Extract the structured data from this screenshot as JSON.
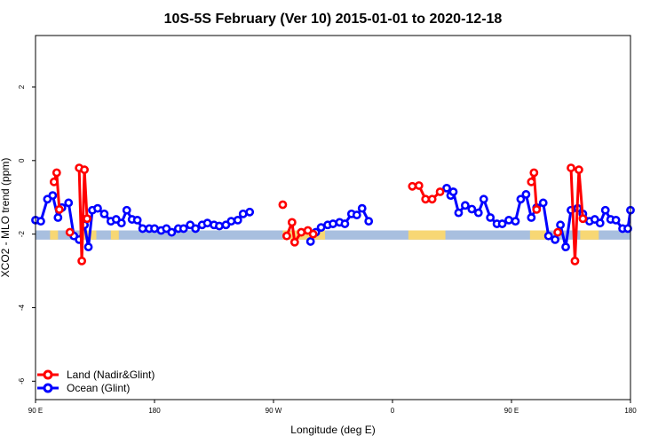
{
  "chart_data": {
    "type": "line",
    "title": "10S-5S February (Ver 10)   2015-01-01 to 2020-12-18",
    "xlabel": "Longitude (deg E)",
    "ylabel": "XCO2 - MLO trend (ppm)",
    "xlim": [
      90,
      540
    ],
    "ylim": [
      -6.5,
      3.4
    ],
    "xticks": [
      {
        "value": 90,
        "label": "90 E"
      },
      {
        "value": 180,
        "label": "180"
      },
      {
        "value": 270,
        "label": "90 W"
      },
      {
        "value": 360,
        "label": "0"
      },
      {
        "value": 450,
        "label": "90 E"
      },
      {
        "value": 540,
        "label": "180"
      }
    ],
    "yticks": [
      {
        "value": -6,
        "label": "-6"
      },
      {
        "value": -4,
        "label": "-4"
      },
      {
        "value": -2,
        "label": "-2"
      },
      {
        "value": 0,
        "label": "0"
      },
      {
        "value": 2,
        "label": "2"
      }
    ],
    "grid": false,
    "legend_position": "bottom-left",
    "band": {
      "y_range": [
        -2.15,
        -1.9
      ],
      "ocean_color": "#a8bfdf",
      "land_color": "#f7d774",
      "land_segments": [
        [
          101,
          107
        ],
        [
          125,
          136
        ],
        [
          147,
          153
        ],
        [
          277,
          309
        ],
        [
          372,
          400
        ],
        [
          464,
          476
        ],
        [
          502,
          516
        ]
      ]
    },
    "series": [
      {
        "name": "Land (Nadir&Glint)",
        "color": "#ff0000",
        "segments": [
          [
            [
              104,
              -0.58
            ],
            [
              106,
              -0.33
            ],
            [
              108,
              -1.33
            ]
          ],
          [
            [
              123,
              -0.2
            ],
            [
              125,
              -2.73
            ],
            [
              127,
              -0.25
            ],
            [
              129,
              -1.58
            ]
          ],
          [
            [
              277,
              -1.2
            ]
          ],
          [
            [
              280,
              -2.05
            ],
            [
              284,
              -1.68
            ],
            [
              286,
              -2.22
            ],
            [
              291,
              -1.95
            ],
            [
              296,
              -1.9
            ],
            [
              300,
              -2.0
            ]
          ],
          [
            [
              375,
              -0.7
            ],
            [
              380,
              -0.68
            ],
            [
              385,
              -1.05
            ],
            [
              390,
              -1.05
            ],
            [
              396,
              -0.85
            ]
          ],
          [
            [
              116,
              -1.95
            ]
          ],
          [
            [
              465,
              -0.58
            ],
            [
              467,
              -0.33
            ],
            [
              469,
              -1.33
            ]
          ],
          [
            [
              485,
              -1.95
            ]
          ],
          [
            [
              495,
              -0.2
            ],
            [
              498,
              -2.73
            ],
            [
              501,
              -0.25
            ],
            [
              504,
              -1.58
            ]
          ]
        ]
      },
      {
        "name": "Ocean (Glint)",
        "color": "#0000ff",
        "segments": [
          [
            [
              90,
              -1.62
            ],
            [
              94,
              -1.65
            ],
            [
              99,
              -1.05
            ],
            [
              103,
              -0.95
            ],
            [
              107,
              -1.55
            ],
            [
              110,
              -1.28
            ],
            [
              115,
              -1.15
            ],
            [
              119,
              -2.05
            ],
            [
              123,
              -2.15
            ],
            [
              127,
              -1.75
            ],
            [
              130,
              -2.35
            ],
            [
              133,
              -1.35
            ],
            [
              137,
              -1.3
            ],
            [
              142,
              -1.45
            ],
            [
              147,
              -1.65
            ],
            [
              151,
              -1.6
            ],
            [
              155,
              -1.7
            ],
            [
              159,
              -1.35
            ],
            [
              163,
              -1.6
            ],
            [
              167,
              -1.62
            ],
            [
              171,
              -1.85
            ],
            [
              176,
              -1.85
            ],
            [
              180,
              -1.85
            ],
            [
              185,
              -1.9
            ],
            [
              189,
              -1.85
            ],
            [
              193,
              -1.95
            ],
            [
              198,
              -1.85
            ],
            [
              202,
              -1.85
            ],
            [
              207,
              -1.75
            ],
            [
              211,
              -1.85
            ],
            [
              216,
              -1.75
            ],
            [
              220,
              -1.7
            ],
            [
              225,
              -1.75
            ],
            [
              229,
              -1.78
            ],
            [
              234,
              -1.75
            ],
            [
              238,
              -1.65
            ],
            [
              243,
              -1.62
            ],
            [
              247,
              -1.45
            ],
            [
              252,
              -1.4
            ]
          ],
          [
            [
              298,
              -2.2
            ],
            [
              302,
              -1.95
            ],
            [
              306,
              -1.82
            ],
            [
              311,
              -1.75
            ],
            [
              315,
              -1.72
            ],
            [
              320,
              -1.68
            ],
            [
              324,
              -1.72
            ],
            [
              329,
              -1.45
            ],
            [
              333,
              -1.48
            ],
            [
              337,
              -1.3
            ],
            [
              342,
              -1.65
            ]
          ],
          [
            [
              401,
              -0.75
            ],
            [
              404,
              -0.95
            ],
            [
              406,
              -0.85
            ],
            [
              410,
              -1.42
            ],
            [
              415,
              -1.22
            ],
            [
              420,
              -1.32
            ],
            [
              425,
              -1.42
            ],
            [
              429,
              -1.05
            ],
            [
              434,
              -1.55
            ],
            [
              439,
              -1.72
            ],
            [
              443,
              -1.72
            ],
            [
              448,
              -1.62
            ],
            [
              453,
              -1.65
            ],
            [
              457,
              -1.05
            ],
            [
              461,
              -0.92
            ],
            [
              465,
              -1.55
            ],
            [
              469,
              -1.28
            ],
            [
              474,
              -1.15
            ],
            [
              478,
              -2.05
            ],
            [
              483,
              -2.15
            ],
            [
              487,
              -1.75
            ],
            [
              491,
              -2.35
            ],
            [
              495,
              -1.35
            ],
            [
              500,
              -1.3
            ],
            [
              504,
              -1.45
            ],
            [
              509,
              -1.65
            ],
            [
              513,
              -1.6
            ],
            [
              517,
              -1.7
            ],
            [
              521,
              -1.35
            ],
            [
              525,
              -1.6
            ],
            [
              529,
              -1.62
            ],
            [
              534,
              -1.85
            ],
            [
              538,
              -1.85
            ],
            [
              540,
              -1.35
            ]
          ]
        ]
      }
    ]
  }
}
